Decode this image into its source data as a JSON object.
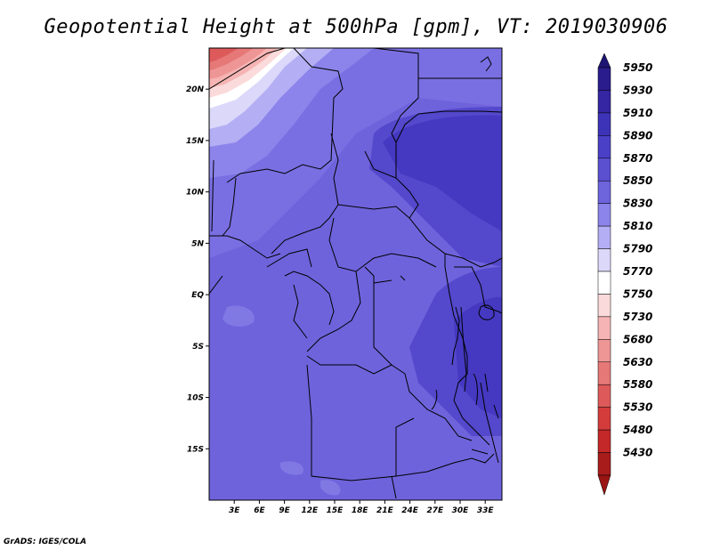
{
  "title": "Geopotential Height at 500hPa [gpm], VT: 2019030906",
  "credit": "GrADS: IGES/COLA",
  "map": {
    "lon_range": [
      0,
      35
    ],
    "lat_range": [
      -20,
      24
    ],
    "lat_ticks": [
      {
        "value": 20,
        "label": "20N"
      },
      {
        "value": 15,
        "label": "15N"
      },
      {
        "value": 10,
        "label": "10N"
      },
      {
        "value": 5,
        "label": "5N"
      },
      {
        "value": 0,
        "label": "EQ"
      },
      {
        "value": -5,
        "label": "5S"
      },
      {
        "value": -10,
        "label": "10S"
      },
      {
        "value": -15,
        "label": "15S"
      }
    ],
    "lon_ticks": [
      {
        "value": 3,
        "label": "3E"
      },
      {
        "value": 6,
        "label": "6E"
      },
      {
        "value": 9,
        "label": "9E"
      },
      {
        "value": 12,
        "label": "12E"
      },
      {
        "value": 15,
        "label": "15E"
      },
      {
        "value": 18,
        "label": "18E"
      },
      {
        "value": 21,
        "label": "21E"
      },
      {
        "value": 24,
        "label": "24E"
      },
      {
        "value": 27,
        "label": "27E"
      },
      {
        "value": 30,
        "label": "30E"
      },
      {
        "value": 33,
        "label": "33E"
      }
    ]
  },
  "colorbar": {
    "levels": [
      {
        "label": "5950",
        "color": "#2a1c8c"
      },
      {
        "label": "5930",
        "color": "#3526a3"
      },
      {
        "label": "5910",
        "color": "#3d33b8"
      },
      {
        "label": "5890",
        "color": "#4a40c8"
      },
      {
        "label": "5870",
        "color": "#5a50d0"
      },
      {
        "label": "5850",
        "color": "#6e64dc"
      },
      {
        "label": "5830",
        "color": "#8c84ea"
      },
      {
        "label": "5810",
        "color": "#b4aef4"
      },
      {
        "label": "5790",
        "color": "#dcd8fa"
      },
      {
        "label": "5770",
        "color": "#ffffff"
      },
      {
        "label": "5750",
        "color": "#fadada"
      },
      {
        "label": "5730",
        "color": "#f6b4b4"
      },
      {
        "label": "5680",
        "color": "#ee9696"
      },
      {
        "label": "5630",
        "color": "#e67878"
      },
      {
        "label": "5580",
        "color": "#de5a5a"
      },
      {
        "label": "5530",
        "color": "#d43c3c"
      },
      {
        "label": "5480",
        "color": "#c42828"
      },
      {
        "label": "5430",
        "color": "#a81c1c"
      }
    ],
    "top_arrow_color": "#1e1473",
    "bottom_arrow_color": "#9a1414"
  },
  "colors": {
    "background_field": "#6f63dc",
    "deep_field": "#4b3fc8",
    "light_field": "#9f97ee",
    "boundaries": "#000000"
  }
}
